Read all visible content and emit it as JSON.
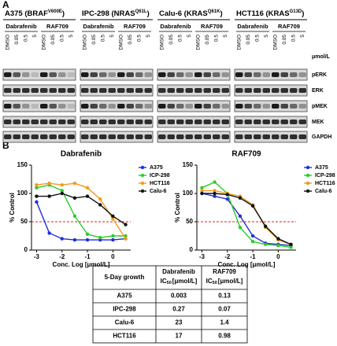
{
  "panel_labels": [
    "A",
    "B"
  ],
  "blot": {
    "cell_lines": [
      {
        "name": "A375 (BRAF",
        "mutation": "V600E",
        "close": ")"
      },
      {
        "name": "IPC-298 (NRAS",
        "mutation": "Q61L",
        "close": ")"
      },
      {
        "name": "Calu-6 (KRAS",
        "mutation": "Q61K",
        "close": ")"
      },
      {
        "name": "HCT116 (KRAS",
        "mutation": "G13D",
        "close": ")"
      }
    ],
    "drugs": [
      "Dabrafenib",
      "RAF709"
    ],
    "doses": [
      "DMSO",
      "0.05",
      "0.5",
      "5"
    ],
    "unit": "μmol/L",
    "proteins": [
      "pERK",
      "ERK",
      "pMEK",
      "MEK",
      "GAPDH"
    ]
  },
  "chart_data": [
    {
      "type": "line",
      "title": "Dabrafenib",
      "xlabel": "Conc. Log [μmol/L]",
      "ylabel": "% Control",
      "x": [
        -3,
        -2.5,
        -2,
        -1.5,
        -1,
        -0.5,
        0,
        0.5
      ],
      "xlim": [
        -3.2,
        0.7
      ],
      "xticks": [
        -3,
        -2,
        -1,
        0
      ],
      "ylim": [
        0,
        150
      ],
      "yticks": [
        0,
        50,
        100,
        150
      ],
      "ref_line": 50,
      "ref_color": "#e02020",
      "legend": "right",
      "series": [
        {
          "name": "A375",
          "color": "#1f2fd8",
          "values": [
            85,
            30,
            20,
            18,
            18,
            18,
            18,
            20
          ]
        },
        {
          "name": "ICP-298",
          "color": "#2ccc2c",
          "values": [
            110,
            115,
            105,
            60,
            28,
            22,
            25,
            25
          ]
        },
        {
          "name": "HCT116",
          "color": "#f39a1a",
          "values": [
            115,
            118,
            115,
            118,
            110,
            90,
            55,
            20
          ]
        },
        {
          "name": "Calu-6",
          "color": "#111111",
          "values": [
            95,
            95,
            100,
            92,
            95,
            80,
            60,
            45
          ]
        }
      ]
    },
    {
      "type": "line",
      "title": "RAF709",
      "xlabel": "Conc. Log [μmol/L]",
      "ylabel": "% Control",
      "x": [
        -3,
        -2.5,
        -2,
        -1.5,
        -1,
        -0.5,
        0,
        0.5
      ],
      "xlim": [
        -3.2,
        0.7
      ],
      "xticks": [
        -3,
        -2,
        -1,
        0
      ],
      "ylim": [
        0,
        150
      ],
      "yticks": [
        0,
        50,
        100,
        150
      ],
      "ref_line": 50,
      "ref_color": "#e02020",
      "legend": "right",
      "series": [
        {
          "name": "A375",
          "color": "#1f2fd8",
          "values": [
            100,
            95,
            90,
            60,
            25,
            12,
            10,
            8
          ]
        },
        {
          "name": "ICP-298",
          "color": "#2ccc2c",
          "values": [
            110,
            120,
            100,
            40,
            15,
            10,
            8,
            5
          ]
        },
        {
          "name": "HCT116",
          "color": "#f39a1a",
          "values": [
            105,
            105,
            100,
            95,
            80,
            40,
            18,
            10
          ]
        },
        {
          "name": "Calu-6",
          "color": "#111111",
          "values": [
            100,
            100,
            98,
            92,
            78,
            42,
            20,
            10
          ]
        }
      ]
    }
  ],
  "table": {
    "header": [
      {
        "text": "5-Day growth"
      },
      {
        "text": "Dabrafenib",
        "ic": "IC",
        "sub": "50",
        "unit": "[μmol/L]"
      },
      {
        "text": "RAF709",
        "ic": "IC",
        "sub": "50",
        "unit": "[μmol/L]"
      }
    ],
    "rows": [
      [
        "A375",
        "0.003",
        "0.13"
      ],
      [
        "IPC-298",
        "0.27",
        "0.07"
      ],
      [
        "Calu-6",
        "23",
        "1.4"
      ],
      [
        "HCT116",
        "17",
        "0.98"
      ]
    ]
  }
}
